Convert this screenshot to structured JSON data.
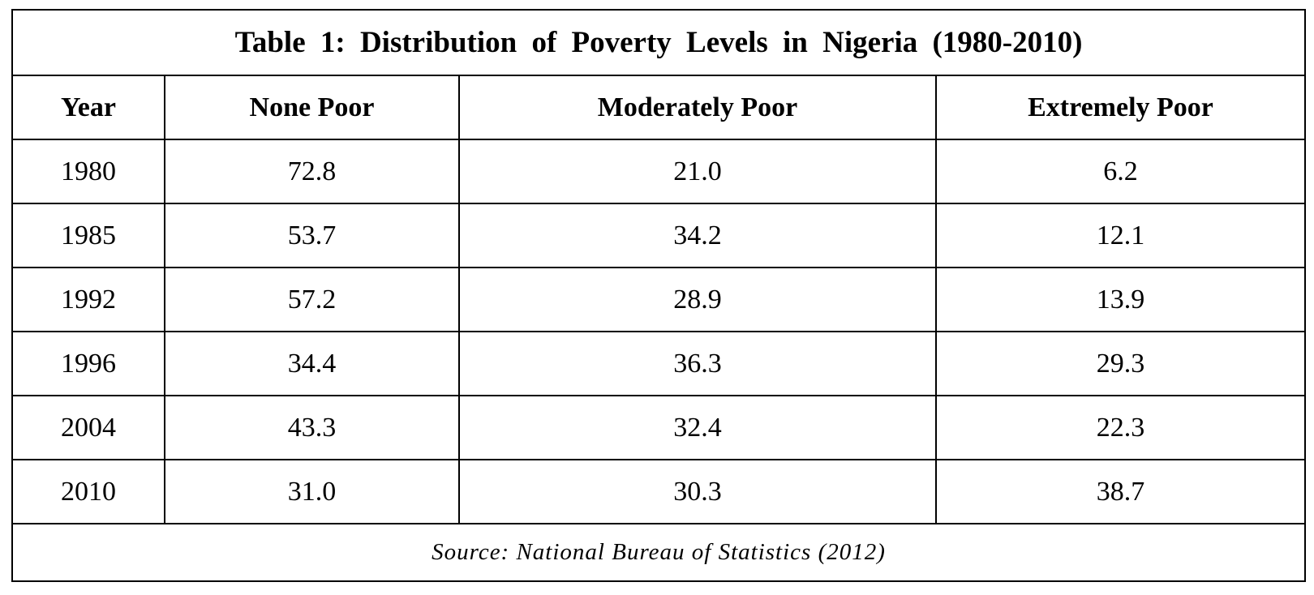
{
  "table": {
    "caption": "Table 1: Distribution of Poverty Levels in Nigeria (1980-2010)",
    "headers": [
      "Year",
      "None Poor",
      "Moderately Poor",
      "Extremely Poor"
    ],
    "rows": [
      [
        "1980",
        "72.8",
        "21.0",
        "6.2"
      ],
      [
        "1985",
        "53.7",
        "34.2",
        "12.1"
      ],
      [
        "1992",
        "57.2",
        "28.9",
        "13.9"
      ],
      [
        "1996",
        "34.4",
        "36.3",
        "29.3"
      ],
      [
        "2004",
        "43.3",
        "32.4",
        "22.3"
      ],
      [
        "2010",
        "31.0",
        "30.3",
        "38.7"
      ]
    ],
    "source": "Source: National Bureau of Statistics (2012)"
  }
}
